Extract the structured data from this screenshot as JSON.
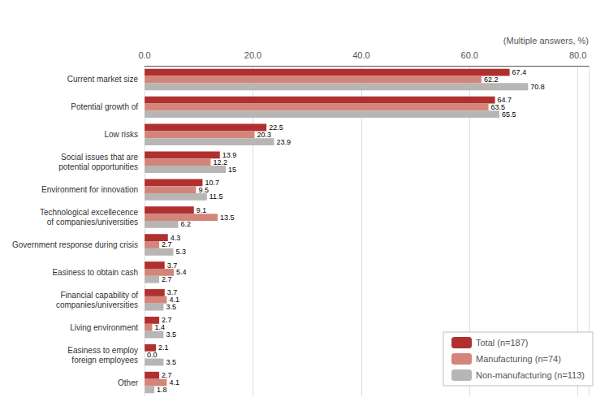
{
  "chart_data": {
    "type": "bar",
    "orientation": "horizontal",
    "categories": [
      "Current market size",
      "Potential growth of",
      "Low risks",
      "Social issues that are\npotential opportunities",
      "Environment for innovation",
      "Technological excellecence\nof companies/universities",
      "Government response during crisis",
      "Easiness to obtain cash",
      "Financial capability of\ncompanies/universities",
      "Living environment",
      "Easiness to employ\nforeign employees",
      "Other"
    ],
    "series": [
      {
        "name": "Total (n=187)",
        "color": "#b03030",
        "values": [
          67.4,
          64.7,
          22.5,
          13.9,
          10.7,
          9.1,
          4.3,
          3.7,
          3.7,
          2.7,
          2.1,
          2.7
        ]
      },
      {
        "name": "Manufacturing (n=74)",
        "color": "#d4857a",
        "values": [
          62.2,
          63.5,
          20.3,
          12.2,
          9.5,
          13.5,
          2.7,
          5.4,
          4.1,
          1.4,
          0.0,
          4.1
        ],
        "value_labels": [
          "62.2",
          "63.5",
          "20.3",
          "12.2",
          "9.5",
          "13.5",
          "2.7",
          "5.4",
          "4.1",
          "1.4",
          "0.0",
          "4.1"
        ]
      },
      {
        "name": "Non-manufacturing (n=113)",
        "color": "#b8b5b5",
        "values": [
          70.8,
          65.5,
          23.9,
          15.0,
          11.5,
          6.2,
          5.3,
          2.7,
          3.5,
          3.5,
          3.5,
          1.8
        ]
      }
    ],
    "xlabel": "(Multiple answers, %)",
    "xlim": [
      0,
      82
    ],
    "xticks": [
      {
        "value": 0,
        "label": "0.0"
      },
      {
        "value": 20,
        "label": "20.0"
      },
      {
        "value": 40,
        "label": "40.0"
      },
      {
        "value": 60,
        "label": "60.0"
      },
      {
        "value": 80,
        "label": "80.0"
      }
    ],
    "grid": true,
    "legend": "lower right",
    "data_labels": true
  }
}
